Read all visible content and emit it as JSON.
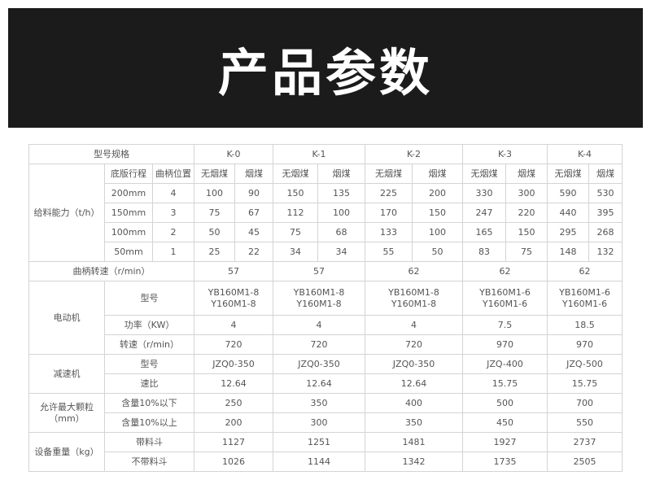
{
  "header": {
    "title": "产品参数"
  },
  "table": {
    "model_spec_label": "型号规格",
    "models": [
      "K-0",
      "K-1",
      "K-2",
      "K-3",
      "K-4"
    ],
    "feed": {
      "label": "给料能力（t/h）",
      "stroke_header": "底版行程",
      "crank_header": "曲柄位置",
      "coal_types": [
        "无烟煤",
        "烟煤"
      ],
      "rows": [
        {
          "stroke": "200mm",
          "crank": "4",
          "values": [
            "100",
            "90",
            "150",
            "135",
            "225",
            "200",
            "330",
            "300",
            "590",
            "530"
          ]
        },
        {
          "stroke": "150mm",
          "crank": "3",
          "values": [
            "75",
            "67",
            "112",
            "100",
            "170",
            "150",
            "247",
            "220",
            "440",
            "395"
          ]
        },
        {
          "stroke": "100mm",
          "crank": "2",
          "values": [
            "50",
            "45",
            "75",
            "68",
            "133",
            "100",
            "165",
            "150",
            "295",
            "268"
          ]
        },
        {
          "stroke": "50mm",
          "crank": "1",
          "values": [
            "25",
            "22",
            "34",
            "34",
            "55",
            "50",
            "83",
            "75",
            "148",
            "132"
          ]
        }
      ]
    },
    "crank_speed": {
      "label": "曲柄转速（r/min）",
      "values": [
        "57",
        "57",
        "62",
        "62",
        "62"
      ]
    },
    "motor": {
      "label": "电动机",
      "model_label": "型号",
      "models": [
        [
          "YB160M1-8",
          "Y160M1-8"
        ],
        [
          "YB160M1-8",
          "Y160M1-8"
        ],
        [
          "YB160M1-8",
          "Y160M1-8"
        ],
        [
          "YB160M1-6",
          "Y160M1-6"
        ],
        [
          "YB160M1-6",
          "Y160M1-6"
        ]
      ],
      "power_label": "功率（KW）",
      "power": [
        "4",
        "4",
        "4",
        "7.5",
        "18.5"
      ],
      "speed_label": "转速（r/min）",
      "speed": [
        "720",
        "720",
        "720",
        "970",
        "970"
      ]
    },
    "reducer": {
      "label": "减速机",
      "model_label": "型号",
      "models": [
        "JZQ0-350",
        "JZQ0-350",
        "JZQ0-350",
        "JZQ-400",
        "JZQ-500"
      ],
      "ratio_label": "速比",
      "ratios": [
        "12.64",
        "12.64",
        "12.64",
        "15.75",
        "15.75"
      ]
    },
    "particle": {
      "label_line1": "允许最大颗粒",
      "label_line2": "（mm）",
      "rows": [
        {
          "label": "含量10%以下",
          "values": [
            "250",
            "350",
            "400",
            "500",
            "700"
          ]
        },
        {
          "label": "含量10%以上",
          "values": [
            "200",
            "300",
            "350",
            "450",
            "550"
          ]
        }
      ]
    },
    "weight": {
      "label": "设备重量（kg）",
      "rows": [
        {
          "label": "带料斗",
          "values": [
            "1127",
            "1251",
            "1481",
            "1927",
            "2737"
          ]
        },
        {
          "label": "不带料斗",
          "values": [
            "1026",
            "1144",
            "1342",
            "1735",
            "2505"
          ]
        }
      ]
    }
  }
}
